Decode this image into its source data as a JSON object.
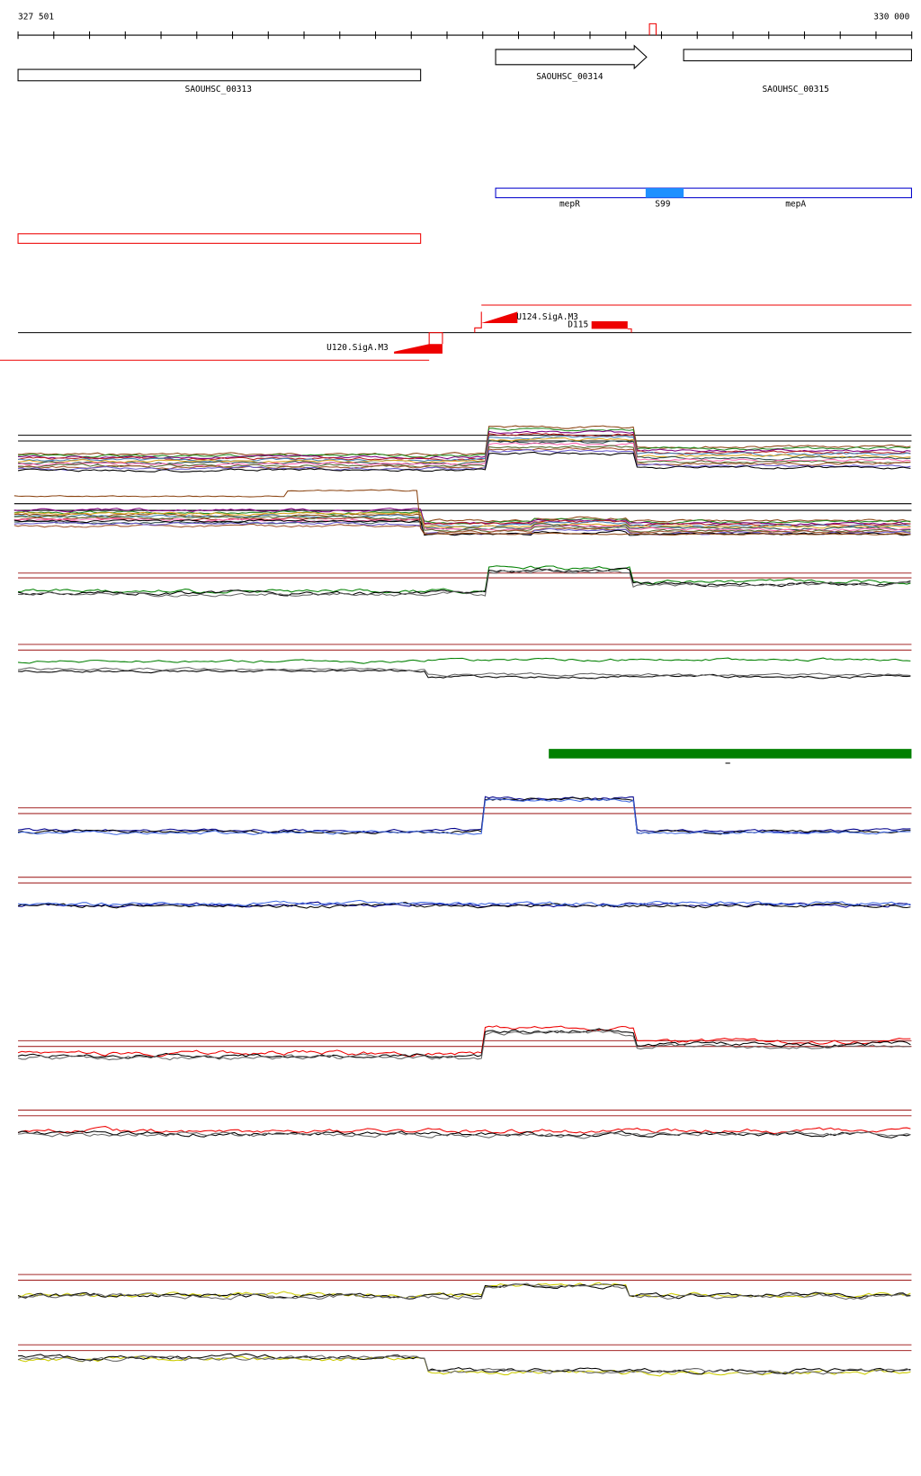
{
  "ruler": {
    "start": "327 501",
    "end": "330 000"
  },
  "genes": [
    {
      "label": "SAOUHSC_00313"
    },
    {
      "label": "SAOUHSC_00314"
    },
    {
      "label": "SAOUHSC_00315"
    }
  ],
  "annotations": [
    {
      "label": "mepR"
    },
    {
      "label": "S99"
    },
    {
      "label": "mepA"
    }
  ],
  "promoters": [
    {
      "label": "U124.SigA.M3"
    },
    {
      "label": "D115"
    },
    {
      "label": "U120.SigA.M3"
    }
  ]
}
